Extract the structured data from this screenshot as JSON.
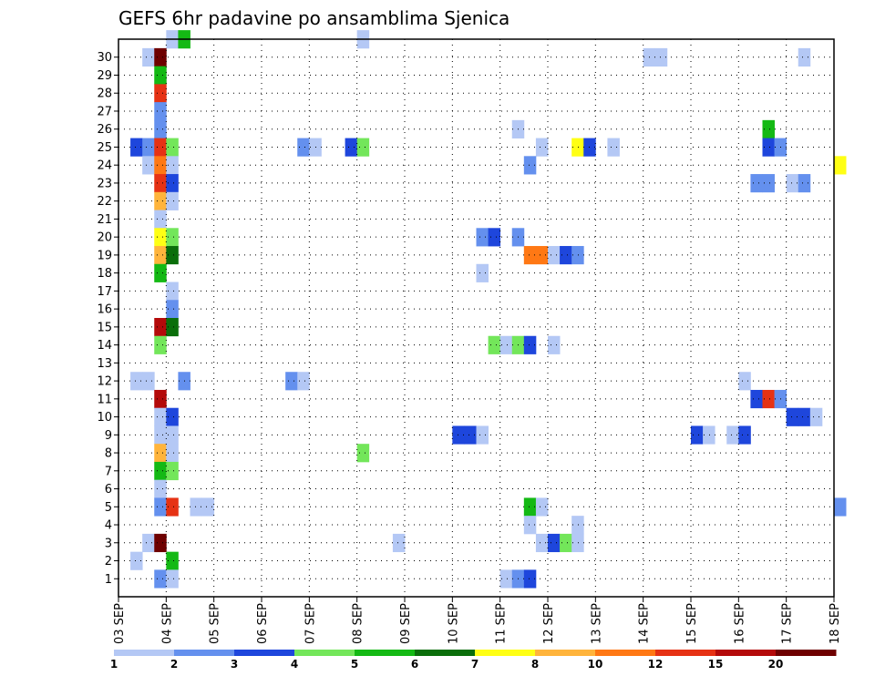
{
  "chart_data": {
    "type": "heatmap",
    "title": "GEFS 6hr padavine po ansamblima Sjenica",
    "x_tick_labels": [
      "03 SEP",
      "04 SEP",
      "05 SEP",
      "06 SEP",
      "07 SEP",
      "08 SEP",
      "09 SEP",
      "10 SEP",
      "11 SEP",
      "12 SEP",
      "13 SEP",
      "14 SEP",
      "15 SEP",
      "16 SEP",
      "17 SEP",
      "18 SEP"
    ],
    "y_tick_labels": [
      "1",
      "2",
      "3",
      "4",
      "5",
      "6",
      "7",
      "8",
      "9",
      "10",
      "11",
      "12",
      "13",
      "14",
      "15",
      "16",
      "17",
      "18",
      "19",
      "20",
      "21",
      "22",
      "23",
      "24",
      "25",
      "26",
      "27",
      "28",
      "29",
      "30"
    ],
    "x_steps_per_day": 4,
    "ylim": [
      0,
      30
    ],
    "grid": true,
    "legend": {
      "position": "bottom",
      "levels": [
        "1",
        "2",
        "3",
        "4",
        "5",
        "6",
        "7",
        "8",
        "10",
        "12",
        "15",
        "20"
      ],
      "colors": [
        "#b4c8f5",
        "#6490ee",
        "#1e46dc",
        "#73e65a",
        "#14b914",
        "#0a6e0a",
        "#ffff14",
        "#ffb43c",
        "#ff7814",
        "#e63214",
        "#b40a0a",
        "#6e0000"
      ]
    },
    "cells": [
      {
        "member": 30,
        "step": 4,
        "cls": 0
      },
      {
        "member": 30,
        "step": 5,
        "cls": 4
      },
      {
        "member": 30,
        "step": 20,
        "cls": 0
      },
      {
        "member": 29,
        "step": 2,
        "cls": 0
      },
      {
        "member": 29,
        "step": 3,
        "cls": 11
      },
      {
        "member": 29,
        "step": 44,
        "cls": 0
      },
      {
        "member": 29,
        "step": 45,
        "cls": 0
      },
      {
        "member": 29,
        "step": 57,
        "cls": 0
      },
      {
        "member": 28,
        "step": 3,
        "cls": 4
      },
      {
        "member": 27,
        "step": 3,
        "cls": 9
      },
      {
        "member": 26,
        "step": 3,
        "cls": 1
      },
      {
        "member": 25,
        "step": 3,
        "cls": 1
      },
      {
        "member": 25,
        "step": 33,
        "cls": 0
      },
      {
        "member": 25,
        "step": 54,
        "cls": 4
      },
      {
        "member": 24,
        "step": 1,
        "cls": 2
      },
      {
        "member": 24,
        "step": 2,
        "cls": 1
      },
      {
        "member": 24,
        "step": 3,
        "cls": 9
      },
      {
        "member": 24,
        "step": 4,
        "cls": 3
      },
      {
        "member": 24,
        "step": 15,
        "cls": 1
      },
      {
        "member": 24,
        "step": 16,
        "cls": 0
      },
      {
        "member": 24,
        "step": 19,
        "cls": 2
      },
      {
        "member": 24,
        "step": 20,
        "cls": 3
      },
      {
        "member": 24,
        "step": 35,
        "cls": 0
      },
      {
        "member": 24,
        "step": 38,
        "cls": 6
      },
      {
        "member": 24,
        "step": 39,
        "cls": 2
      },
      {
        "member": 24,
        "step": 41,
        "cls": 0
      },
      {
        "member": 24,
        "step": 54,
        "cls": 2
      },
      {
        "member": 24,
        "step": 55,
        "cls": 1
      },
      {
        "member": 23,
        "step": 2,
        "cls": 0
      },
      {
        "member": 23,
        "step": 3,
        "cls": 8
      },
      {
        "member": 23,
        "step": 4,
        "cls": 0
      },
      {
        "member": 23,
        "step": 34,
        "cls": 1
      },
      {
        "member": 23,
        "step": 60,
        "cls": 6
      },
      {
        "member": 22,
        "step": 3,
        "cls": 9
      },
      {
        "member": 22,
        "step": 4,
        "cls": 2
      },
      {
        "member": 22,
        "step": 53,
        "cls": 1
      },
      {
        "member": 22,
        "step": 54,
        "cls": 1
      },
      {
        "member": 22,
        "step": 56,
        "cls": 0
      },
      {
        "member": 22,
        "step": 57,
        "cls": 1
      },
      {
        "member": 21,
        "step": 3,
        "cls": 7
      },
      {
        "member": 21,
        "step": 4,
        "cls": 0
      },
      {
        "member": 20,
        "step": 3,
        "cls": 0
      },
      {
        "member": 19,
        "step": 3,
        "cls": 6
      },
      {
        "member": 19,
        "step": 4,
        "cls": 3
      },
      {
        "member": 19,
        "step": 30,
        "cls": 1
      },
      {
        "member": 19,
        "step": 31,
        "cls": 2
      },
      {
        "member": 19,
        "step": 33,
        "cls": 1
      },
      {
        "member": 18,
        "step": 3,
        "cls": 7
      },
      {
        "member": 18,
        "step": 4,
        "cls": 5
      },
      {
        "member": 18,
        "step": 34,
        "cls": 8
      },
      {
        "member": 18,
        "step": 35,
        "cls": 8
      },
      {
        "member": 18,
        "step": 36,
        "cls": 0
      },
      {
        "member": 18,
        "step": 37,
        "cls": 2
      },
      {
        "member": 18,
        "step": 38,
        "cls": 1
      },
      {
        "member": 17,
        "step": 3,
        "cls": 4
      },
      {
        "member": 17,
        "step": 30,
        "cls": 0
      },
      {
        "member": 16,
        "step": 4,
        "cls": 0
      },
      {
        "member": 15,
        "step": 4,
        "cls": 1
      },
      {
        "member": 14,
        "step": 3,
        "cls": 10
      },
      {
        "member": 14,
        "step": 4,
        "cls": 5
      },
      {
        "member": 13,
        "step": 3,
        "cls": 3
      },
      {
        "member": 13,
        "step": 31,
        "cls": 3
      },
      {
        "member": 13,
        "step": 32,
        "cls": 0
      },
      {
        "member": 13,
        "step": 33,
        "cls": 3
      },
      {
        "member": 13,
        "step": 34,
        "cls": 2
      },
      {
        "member": 13,
        "step": 36,
        "cls": 0
      },
      {
        "member": 11,
        "step": 1,
        "cls": 0
      },
      {
        "member": 11,
        "step": 2,
        "cls": 0
      },
      {
        "member": 11,
        "step": 5,
        "cls": 1
      },
      {
        "member": 11,
        "step": 14,
        "cls": 1
      },
      {
        "member": 11,
        "step": 15,
        "cls": 0
      },
      {
        "member": 11,
        "step": 52,
        "cls": 0
      },
      {
        "member": 10,
        "step": 3,
        "cls": 10
      },
      {
        "member": 10,
        "step": 53,
        "cls": 2
      },
      {
        "member": 10,
        "step": 54,
        "cls": 9
      },
      {
        "member": 10,
        "step": 55,
        "cls": 1
      },
      {
        "member": 9,
        "step": 3,
        "cls": 0
      },
      {
        "member": 9,
        "step": 4,
        "cls": 2
      },
      {
        "member": 9,
        "step": 56,
        "cls": 2
      },
      {
        "member": 9,
        "step": 57,
        "cls": 2
      },
      {
        "member": 9,
        "step": 58,
        "cls": 0
      },
      {
        "member": 8,
        "step": 3,
        "cls": 0
      },
      {
        "member": 8,
        "step": 4,
        "cls": 0
      },
      {
        "member": 8,
        "step": 28,
        "cls": 2
      },
      {
        "member": 8,
        "step": 29,
        "cls": 2
      },
      {
        "member": 8,
        "step": 30,
        "cls": 0
      },
      {
        "member": 8,
        "step": 48,
        "cls": 2
      },
      {
        "member": 8,
        "step": 49,
        "cls": 0
      },
      {
        "member": 8,
        "step": 51,
        "cls": 0
      },
      {
        "member": 8,
        "step": 52,
        "cls": 2
      },
      {
        "member": 7,
        "step": 3,
        "cls": 7
      },
      {
        "member": 7,
        "step": 4,
        "cls": 0
      },
      {
        "member": 7,
        "step": 20,
        "cls": 3
      },
      {
        "member": 6,
        "step": 3,
        "cls": 4
      },
      {
        "member": 6,
        "step": 4,
        "cls": 3
      },
      {
        "member": 5,
        "step": 3,
        "cls": 0
      },
      {
        "member": 4,
        "step": 3,
        "cls": 1
      },
      {
        "member": 4,
        "step": 4,
        "cls": 9
      },
      {
        "member": 4,
        "step": 6,
        "cls": 0
      },
      {
        "member": 4,
        "step": 7,
        "cls": 0
      },
      {
        "member": 4,
        "step": 34,
        "cls": 4
      },
      {
        "member": 4,
        "step": 35,
        "cls": 0
      },
      {
        "member": 4,
        "step": 60,
        "cls": 1
      },
      {
        "member": 3,
        "step": 34,
        "cls": 0
      },
      {
        "member": 3,
        "step": 38,
        "cls": 0
      },
      {
        "member": 2,
        "step": 2,
        "cls": 0
      },
      {
        "member": 2,
        "step": 3,
        "cls": 11
      },
      {
        "member": 2,
        "step": 23,
        "cls": 0
      },
      {
        "member": 2,
        "step": 35,
        "cls": 0
      },
      {
        "member": 2,
        "step": 36,
        "cls": 2
      },
      {
        "member": 2,
        "step": 37,
        "cls": 3
      },
      {
        "member": 2,
        "step": 38,
        "cls": 0
      },
      {
        "member": 1,
        "step": 1,
        "cls": 0
      },
      {
        "member": 1,
        "step": 4,
        "cls": 4
      },
      {
        "member": 0,
        "step": 3,
        "cls": 1
      },
      {
        "member": 0,
        "step": 4,
        "cls": 0
      },
      {
        "member": 0,
        "step": 32,
        "cls": 0
      },
      {
        "member": 0,
        "step": 33,
        "cls": 1
      },
      {
        "member": 0,
        "step": 34,
        "cls": 2
      }
    ]
  }
}
